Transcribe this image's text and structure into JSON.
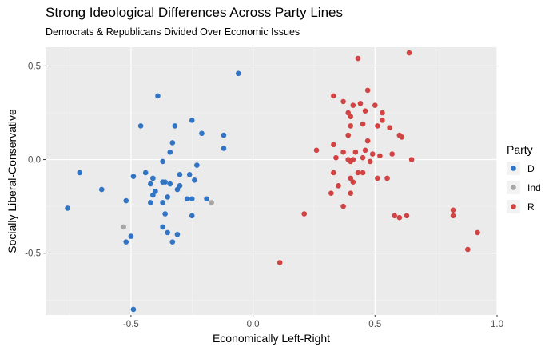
{
  "chart_data": {
    "type": "scatter",
    "title": "Strong Ideological Differences Across Party Lines",
    "subtitle": "Democrats & Republicans Divided Over Economic Issues",
    "xlabel": "Economically Left-Right",
    "ylabel": "Socially Liberal-Conservative",
    "xlim": [
      -0.85,
      1.0
    ],
    "ylim": [
      -0.83,
      0.6
    ],
    "xticks": [
      "-0.5",
      "0.0",
      "0.5",
      "1.0"
    ],
    "yticks": [
      "-0.5",
      "0.0",
      "0.5"
    ],
    "grid": true,
    "legend": {
      "title": "Party",
      "position": "right",
      "entries": [
        {
          "label": "D",
          "color": "#3274c4"
        },
        {
          "label": "Ind",
          "color": "#a6a6a6"
        },
        {
          "label": "R",
          "color": "#d24343"
        }
      ]
    },
    "series": [
      {
        "name": "D",
        "color": "#3274c4",
        "points": [
          [
            -0.06,
            0.46
          ],
          [
            -0.39,
            0.34
          ],
          [
            -0.25,
            0.21
          ],
          [
            -0.46,
            0.18
          ],
          [
            -0.32,
            0.18
          ],
          [
            -0.21,
            0.14
          ],
          [
            -0.12,
            0.13
          ],
          [
            -0.33,
            0.09
          ],
          [
            -0.34,
            0.04
          ],
          [
            -0.12,
            0.06
          ],
          [
            -0.37,
            -0.01
          ],
          [
            -0.23,
            -0.03
          ],
          [
            -0.71,
            -0.07
          ],
          [
            -0.44,
            -0.07
          ],
          [
            -0.3,
            -0.08
          ],
          [
            -0.49,
            -0.09
          ],
          [
            -0.26,
            -0.08
          ],
          [
            -0.41,
            -0.1
          ],
          [
            -0.37,
            -0.12
          ],
          [
            -0.24,
            -0.11
          ],
          [
            -0.36,
            -0.12
          ],
          [
            -0.34,
            -0.13
          ],
          [
            -0.42,
            -0.13
          ],
          [
            -0.3,
            -0.14
          ],
          [
            -0.62,
            -0.16
          ],
          [
            -0.4,
            -0.17
          ],
          [
            -0.31,
            -0.16
          ],
          [
            -0.41,
            -0.19
          ],
          [
            -0.35,
            -0.2
          ],
          [
            -0.27,
            -0.21
          ],
          [
            -0.25,
            -0.21
          ],
          [
            -0.19,
            -0.21
          ],
          [
            -0.52,
            -0.22
          ],
          [
            -0.42,
            -0.23
          ],
          [
            -0.37,
            -0.23
          ],
          [
            -0.76,
            -0.26
          ],
          [
            -0.36,
            -0.29
          ],
          [
            -0.25,
            -0.3
          ],
          [
            -0.37,
            -0.36
          ],
          [
            -0.35,
            -0.39
          ],
          [
            -0.31,
            -0.4
          ],
          [
            -0.5,
            -0.41
          ],
          [
            -0.33,
            -0.44
          ],
          [
            -0.52,
            -0.44
          ],
          [
            -0.49,
            -0.8
          ]
        ]
      },
      {
        "name": "Ind",
        "color": "#a6a6a6",
        "points": [
          [
            -0.17,
            -0.23
          ],
          [
            -0.53,
            -0.36
          ]
        ]
      },
      {
        "name": "R",
        "color": "#d24343",
        "points": [
          [
            0.64,
            0.57
          ],
          [
            0.43,
            0.54
          ],
          [
            0.47,
            0.37
          ],
          [
            0.33,
            0.34
          ],
          [
            0.44,
            0.3
          ],
          [
            0.37,
            0.31
          ],
          [
            0.41,
            0.29
          ],
          [
            0.5,
            0.29
          ],
          [
            0.46,
            0.26
          ],
          [
            0.53,
            0.25
          ],
          [
            0.39,
            0.25
          ],
          [
            0.4,
            0.23
          ],
          [
            0.53,
            0.21
          ],
          [
            0.4,
            0.18
          ],
          [
            0.45,
            0.19
          ],
          [
            0.51,
            0.18
          ],
          [
            0.56,
            0.17
          ],
          [
            0.6,
            0.13
          ],
          [
            0.61,
            0.12
          ],
          [
            0.47,
            0.1
          ],
          [
            0.39,
            0.13
          ],
          [
            0.33,
            0.08
          ],
          [
            0.46,
            0.05
          ],
          [
            0.26,
            0.05
          ],
          [
            0.37,
            0.04
          ],
          [
            0.42,
            0.04
          ],
          [
            0.49,
            0.03
          ],
          [
            0.52,
            0.02
          ],
          [
            0.57,
            0.03
          ],
          [
            0.45,
            0.01
          ],
          [
            0.34,
            0.01
          ],
          [
            0.41,
            0.0
          ],
          [
            0.4,
            -0.01
          ],
          [
            0.39,
            0.0
          ],
          [
            0.48,
            -0.01
          ],
          [
            0.65,
            0.0
          ],
          [
            0.45,
            -0.07
          ],
          [
            0.43,
            -0.07
          ],
          [
            0.33,
            -0.07
          ],
          [
            0.51,
            -0.1
          ],
          [
            0.4,
            -0.1
          ],
          [
            0.55,
            -0.1
          ],
          [
            0.41,
            -0.12
          ],
          [
            0.35,
            -0.14
          ],
          [
            0.32,
            -0.18
          ],
          [
            0.4,
            -0.18
          ],
          [
            0.37,
            -0.25
          ],
          [
            0.63,
            -0.3
          ],
          [
            0.6,
            -0.31
          ],
          [
            0.58,
            -0.3
          ],
          [
            0.21,
            -0.29
          ],
          [
            0.82,
            -0.27
          ],
          [
            0.82,
            -0.3
          ],
          [
            0.92,
            -0.39
          ],
          [
            0.88,
            -0.48
          ],
          [
            0.11,
            -0.55
          ]
        ]
      }
    ]
  }
}
